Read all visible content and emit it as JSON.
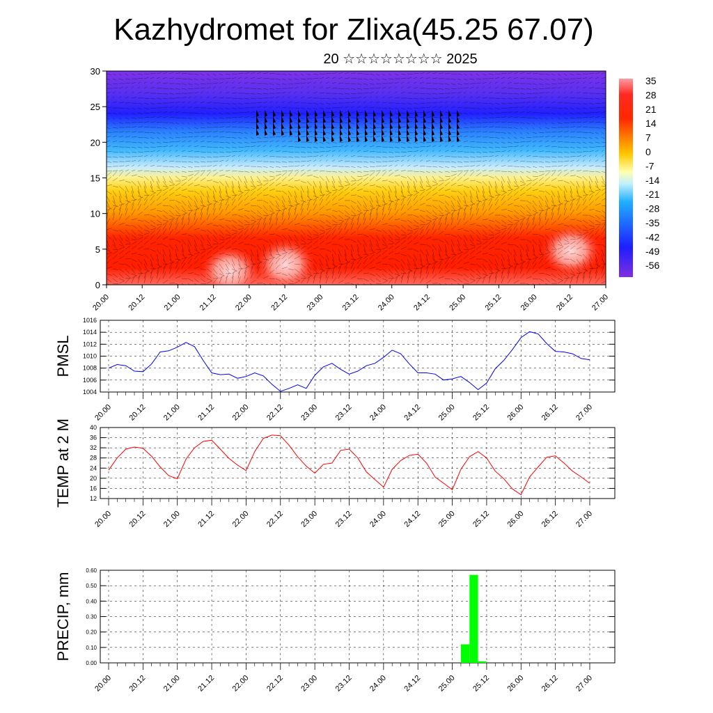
{
  "header": {
    "title": "Kazhydromet for Zlixa(45.25 67.07)",
    "subtitle": "20 ☆☆☆☆☆☆☆☆ 2025"
  },
  "time_labels": [
    "20.00",
    "20.12",
    "21.00",
    "21.12",
    "22.00",
    "22.12",
    "23.00",
    "23.12",
    "24.00",
    "24.12",
    "25.00",
    "25.12",
    "26.00",
    "26.12",
    "27.00"
  ],
  "colors": {
    "pmsl": "#0000ff",
    "temp": "#ff0000",
    "precip": "#00ff00"
  },
  "chart_data": [
    {
      "type": "heatmap",
      "ylim": [
        0,
        30
      ],
      "yticks": [
        0,
        5,
        10,
        15,
        20,
        25,
        30
      ],
      "colorbar": {
        "labels": [
          "35",
          "28",
          "21",
          "14",
          "7",
          "0",
          "-7",
          "-14",
          "-21",
          "-28",
          "-35",
          "-42",
          "-49",
          "-56"
        ]
      }
    },
    {
      "type": "line",
      "ylabel": "PMSL",
      "ylim": [
        1004,
        1016
      ],
      "yticks": [
        1004,
        1006,
        1008,
        1010,
        1012,
        1014,
        1016
      ],
      "values": [
        1008.0,
        1008.6,
        1008.4,
        1007.5,
        1007.4,
        1008.7,
        1010.7,
        1010.9,
        1011.5,
        1012.3,
        1011.6,
        1009.3,
        1007.2,
        1006.9,
        1007.0,
        1006.3,
        1006.6,
        1007.2,
        1006.7,
        1005.3,
        1004.1,
        1004.6,
        1005.2,
        1004.6,
        1006.8,
        1008.2,
        1008.8,
        1007.8,
        1007.0,
        1007.5,
        1008.4,
        1008.8,
        1009.8,
        1011.0,
        1010.4,
        1008.7,
        1007.2,
        1007.2,
        1007.0,
        1006.0,
        1006.2,
        1006.6,
        1005.6,
        1004.4,
        1005.5,
        1007.9,
        1009.3,
        1011.1,
        1013.1,
        1014.1,
        1013.7,
        1012.1,
        1010.8,
        1010.7,
        1010.4,
        1009.6,
        1009.4
      ]
    },
    {
      "type": "line",
      "ylabel": "TEMP at 2 M",
      "ylim": [
        12,
        40
      ],
      "yticks": [
        12,
        16,
        20,
        24,
        28,
        32,
        36,
        40
      ],
      "values": [
        23.2,
        28.0,
        31.5,
        32.3,
        31.8,
        28.7,
        24.5,
        21.0,
        19.8,
        27.5,
        32.0,
        34.5,
        35.0,
        31.5,
        27.8,
        25.2,
        23.0,
        30.5,
        35.7,
        37.0,
        36.8,
        33.0,
        28.5,
        24.8,
        22.0,
        25.5,
        26.0,
        31.0,
        31.5,
        28.0,
        22.5,
        19.5,
        16.5,
        23.5,
        27.0,
        29.0,
        29.5,
        26.0,
        20.5,
        18.0,
        15.5,
        23.5,
        28.5,
        30.5,
        28.0,
        22.8,
        19.8,
        15.8,
        13.5,
        20.5,
        24.5,
        28.3,
        28.8,
        26.0,
        22.8,
        20.5,
        18.0
      ]
    },
    {
      "type": "bar",
      "ylabel": "PRECIP, mm",
      "ylim": [
        0,
        0.6
      ],
      "yticks": [
        "0.00",
        "0.10",
        "0.20",
        "0.30",
        "0.40",
        "0.50",
        "0.60"
      ],
      "bars": [
        {
          "label": "25.06",
          "value": 0.12
        },
        {
          "label": "25.09",
          "value": 0.57
        },
        {
          "label": "25.12",
          "value": 0.01
        }
      ]
    }
  ]
}
